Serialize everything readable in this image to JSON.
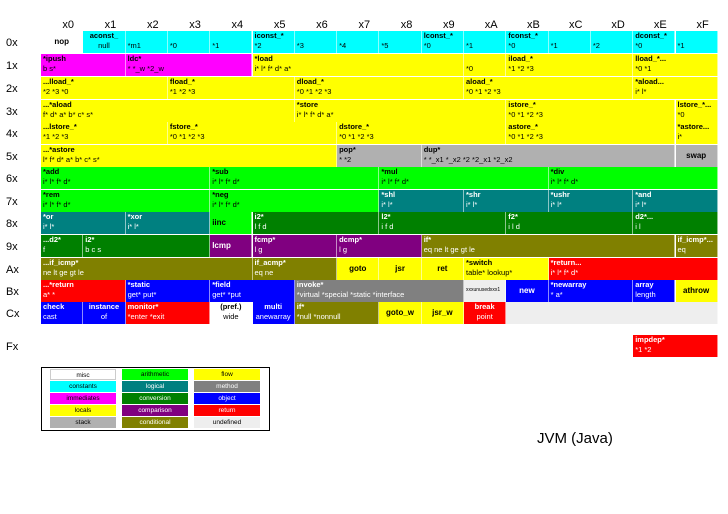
{
  "caption": "JVM (Java)",
  "columns": [
    "x0",
    "x1",
    "x2",
    "x3",
    "x4",
    "x5",
    "x6",
    "x7",
    "x8",
    "x9",
    "xA",
    "xB",
    "xC",
    "xD",
    "xE",
    "xF"
  ],
  "rows": [
    "0x",
    "1x",
    "2x",
    "3x",
    "4x",
    "5x",
    "6x",
    "7x",
    "8x",
    "9x",
    "Ax",
    "Bx",
    "Cx",
    "Fx"
  ],
  "colors": {
    "misc": "#ffffff",
    "constants": "#00ffff",
    "immediates": "#ff00ff",
    "locals": "#ffff00",
    "stack": "#b0b0b0",
    "arithmetic": "#00ff00",
    "logical": "#008080",
    "conversion": "#008000",
    "comparison": "#800080",
    "conditional": "#808000",
    "flow": "#ffff00",
    "method": "#808080",
    "object": "#0000ff",
    "return": "#ff0000",
    "undefined": "#eeeeee"
  },
  "cells": [
    {
      "r": 0,
      "c": 0,
      "w": 1,
      "cat": "misc",
      "t": "nop",
      "b": "",
      "center": true,
      "big": true
    },
    {
      "r": 0,
      "c": 1,
      "w": 1,
      "cat": "constants",
      "t": "aconst_",
      "b": "null",
      "center": true
    },
    {
      "r": 0,
      "c": 2,
      "w": 1,
      "cat": "constants",
      "t": "",
      "b": "*m1"
    },
    {
      "r": 0,
      "c": 3,
      "w": 1,
      "cat": "constants",
      "t": "",
      "b": "*0"
    },
    {
      "r": 0,
      "c": 4,
      "w": 1,
      "cat": "constants",
      "t": "",
      "b": "*1"
    },
    {
      "r": 0,
      "c": 5,
      "w": 1,
      "cat": "constants",
      "t": "iconst_*",
      "b": "*2"
    },
    {
      "r": 0,
      "c": 6,
      "w": 1,
      "cat": "constants",
      "t": "",
      "b": "*3"
    },
    {
      "r": 0,
      "c": 7,
      "w": 1,
      "cat": "constants",
      "t": "",
      "b": "*4"
    },
    {
      "r": 0,
      "c": 8,
      "w": 1,
      "cat": "constants",
      "t": "",
      "b": "*5"
    },
    {
      "r": 0,
      "c": 9,
      "w": 1,
      "cat": "constants",
      "t": "lconst_*",
      "b": "*0"
    },
    {
      "r": 0,
      "c": 10,
      "w": 1,
      "cat": "constants",
      "t": "",
      "b": "*1"
    },
    {
      "r": 0,
      "c": 11,
      "w": 1,
      "cat": "constants",
      "t": "fconst_*",
      "b": "*0"
    },
    {
      "r": 0,
      "c": 12,
      "w": 1,
      "cat": "constants",
      "t": "",
      "b": "*1"
    },
    {
      "r": 0,
      "c": 13,
      "w": 1,
      "cat": "constants",
      "t": "",
      "b": "*2"
    },
    {
      "r": 0,
      "c": 14,
      "w": 1,
      "cat": "constants",
      "t": "dconst_*",
      "b": "*0"
    },
    {
      "r": 0,
      "c": 15,
      "w": 1,
      "cat": "constants",
      "t": "",
      "b": "*1"
    },
    {
      "r": 1,
      "c": 0,
      "w": 2,
      "cat": "immediates",
      "t": "*ipush",
      "b": "b       s*"
    },
    {
      "r": 1,
      "c": 2,
      "w": 3,
      "cat": "immediates",
      "t": "ldc*",
      "b": "*   *_w   *2_w"
    },
    {
      "r": 1,
      "c": 5,
      "w": 5,
      "cat": "locals",
      "t": "*load",
      "b": "i*        l*        f*        d*        a*"
    },
    {
      "r": 1,
      "c": 10,
      "w": 1,
      "cat": "locals",
      "t": "",
      "b": "*0"
    },
    {
      "r": 1,
      "c": 11,
      "w": 3,
      "cat": "locals",
      "t": "iload_*",
      "b": "*1    *2    *3"
    },
    {
      "r": 1,
      "c": 14,
      "w": 2,
      "cat": "locals",
      "t": "lload_*...",
      "b": "*0    *1"
    },
    {
      "r": 2,
      "c": 0,
      "w": 3,
      "cat": "locals",
      "t": "...lload_*",
      "b": "*2     *3     *0"
    },
    {
      "r": 2,
      "c": 3,
      "w": 3,
      "cat": "locals",
      "t": "fload_*",
      "b": "*1     *2     *3"
    },
    {
      "r": 2,
      "c": 6,
      "w": 4,
      "cat": "locals",
      "t": "dload_*",
      "b": "*0     *1     *2     *3"
    },
    {
      "r": 2,
      "c": 10,
      "w": 4,
      "cat": "locals",
      "t": "aload_*",
      "b": "*0     *1     *2     *3"
    },
    {
      "r": 2,
      "c": 14,
      "w": 2,
      "cat": "locals",
      "t": "*aload...",
      "b": "i*     l*"
    },
    {
      "r": 3,
      "c": 0,
      "w": 6,
      "cat": "locals",
      "t": "...*aload",
      "b": "f*      d*      a*      b*      c*      s*"
    },
    {
      "r": 3,
      "c": 6,
      "w": 5,
      "cat": "locals",
      "t": "*store",
      "b": "i*      l*      f*      d*      a*"
    },
    {
      "r": 3,
      "c": 11,
      "w": 4,
      "cat": "locals",
      "t": "istore_*",
      "b": "*0     *1     *2     *3"
    },
    {
      "r": 3,
      "c": 15,
      "w": 1,
      "cat": "locals",
      "t": "lstore_*...",
      "b": "*0"
    },
    {
      "r": 4,
      "c": 0,
      "w": 3,
      "cat": "locals",
      "t": "...lstore_*",
      "b": "*1     *2     *3"
    },
    {
      "r": 4,
      "c": 3,
      "w": 4,
      "cat": "locals",
      "t": "fstore_*",
      "b": "*0     *1     *2     *3"
    },
    {
      "r": 4,
      "c": 7,
      "w": 4,
      "cat": "locals",
      "t": "dstore_*",
      "b": "*0     *1     *2     *3"
    },
    {
      "r": 4,
      "c": 11,
      "w": 4,
      "cat": "locals",
      "t": "astore_*",
      "b": "*0     *1     *2     *3"
    },
    {
      "r": 4,
      "c": 15,
      "w": 1,
      "cat": "locals",
      "t": "*astore...",
      "b": "i*"
    },
    {
      "r": 5,
      "c": 0,
      "w": 7,
      "cat": "locals",
      "t": "...*astore",
      "b": "l*      f*      d*      a*      b*      c*      s*"
    },
    {
      "r": 5,
      "c": 7,
      "w": 2,
      "cat": "stack",
      "t": "pop*",
      "b": "*       *2"
    },
    {
      "r": 5,
      "c": 9,
      "w": 6,
      "cat": "stack",
      "t": "dup*",
      "b": "*     *_x1   *_x2   *2   *2_x1  *2_x2"
    },
    {
      "r": 5,
      "c": 15,
      "w": 1,
      "cat": "stack",
      "t": "swap",
      "b": "",
      "big": true,
      "center": true
    },
    {
      "r": 6,
      "c": 0,
      "w": 4,
      "cat": "arithmetic",
      "t": "*add",
      "b": "i*     l*     f*     d*"
    },
    {
      "r": 6,
      "c": 4,
      "w": 4,
      "cat": "arithmetic",
      "t": "*sub",
      "b": "i*     l*     f*     d*"
    },
    {
      "r": 6,
      "c": 8,
      "w": 4,
      "cat": "arithmetic",
      "t": "*mul",
      "b": "i*     l*     f*     d*"
    },
    {
      "r": 6,
      "c": 12,
      "w": 4,
      "cat": "arithmetic",
      "t": "*div",
      "b": "i*     l*     f*     d*"
    },
    {
      "r": 7,
      "c": 0,
      "w": 4,
      "cat": "arithmetic",
      "t": "*rem",
      "b": "i*     l*     f*     d*"
    },
    {
      "r": 7,
      "c": 4,
      "w": 4,
      "cat": "arithmetic",
      "t": "*neg",
      "b": "i*     l*     f*     d*"
    },
    {
      "r": 7,
      "c": 8,
      "w": 2,
      "cat": "logical",
      "t": "*shl",
      "b": "i*     l*"
    },
    {
      "r": 7,
      "c": 10,
      "w": 2,
      "cat": "logical",
      "t": "*shr",
      "b": "i*     l*"
    },
    {
      "r": 7,
      "c": 12,
      "w": 2,
      "cat": "logical",
      "t": "*ushr",
      "b": "i*     l*"
    },
    {
      "r": 7,
      "c": 14,
      "w": 2,
      "cat": "logical",
      "t": "*and",
      "b": "i*     l*"
    },
    {
      "r": 8,
      "c": 0,
      "w": 2,
      "cat": "logical",
      "t": "*or",
      "b": "i*     l*"
    },
    {
      "r": 8,
      "c": 2,
      "w": 2,
      "cat": "logical",
      "t": "*xor",
      "b": "i*     l*"
    },
    {
      "r": 8,
      "c": 4,
      "w": 1,
      "cat": "arithmetic",
      "t": "iinc",
      "b": "",
      "big": true
    },
    {
      "r": 8,
      "c": 5,
      "w": 3,
      "cat": "conversion",
      "t": "i2*",
      "b": "l     f     d"
    },
    {
      "r": 8,
      "c": 8,
      "w": 3,
      "cat": "conversion",
      "t": "l2*",
      "b": "i     f     d"
    },
    {
      "r": 8,
      "c": 11,
      "w": 3,
      "cat": "conversion",
      "t": "f2*",
      "b": "i     l     d"
    },
    {
      "r": 8,
      "c": 14,
      "w": 2,
      "cat": "conversion",
      "t": "d2*...",
      "b": "i     l"
    },
    {
      "r": 9,
      "c": 0,
      "w": 1,
      "cat": "conversion",
      "t": "...d2*",
      "b": "f"
    },
    {
      "r": 9,
      "c": 1,
      "w": 3,
      "cat": "conversion",
      "t": "i2*",
      "b": "b     c     s"
    },
    {
      "r": 9,
      "c": 4,
      "w": 1,
      "cat": "comparison",
      "t": "lcmp",
      "b": "",
      "big": true
    },
    {
      "r": 9,
      "c": 5,
      "w": 2,
      "cat": "comparison",
      "t": "fcmp*",
      "b": "l     g"
    },
    {
      "r": 9,
      "c": 7,
      "w": 2,
      "cat": "comparison",
      "t": "dcmp*",
      "b": "l     g"
    },
    {
      "r": 9,
      "c": 9,
      "w": 6,
      "cat": "conditional",
      "t": "if*",
      "b": "eq    ne    lt    ge    gt    le"
    },
    {
      "r": 9,
      "c": 15,
      "w": 1,
      "cat": "conditional",
      "t": "if_icmp*...",
      "b": "eq"
    },
    {
      "r": 10,
      "c": 0,
      "w": 5,
      "cat": "conditional",
      "t": "...if_icmp*",
      "b": "ne     lt     ge     gt     le"
    },
    {
      "r": 10,
      "c": 5,
      "w": 2,
      "cat": "conditional",
      "t": "if_acmp*",
      "b": "eq     ne"
    },
    {
      "r": 10,
      "c": 7,
      "w": 1,
      "cat": "flow",
      "t": "goto",
      "b": "",
      "big": true,
      "center": true
    },
    {
      "r": 10,
      "c": 8,
      "w": 1,
      "cat": "flow",
      "t": "jsr",
      "b": "",
      "big": true,
      "center": true
    },
    {
      "r": 10,
      "c": 9,
      "w": 1,
      "cat": "flow",
      "t": "ret",
      "b": "",
      "big": true,
      "center": true
    },
    {
      "r": 10,
      "c": 10,
      "w": 2,
      "cat": "flow",
      "t": "*switch",
      "b": "table*   lookup*"
    },
    {
      "r": 10,
      "c": 12,
      "w": 4,
      "cat": "return",
      "t": "*return...",
      "b": "i*     l*     f*     d*"
    },
    {
      "r": 11,
      "c": 0,
      "w": 2,
      "cat": "return",
      "t": "...*return",
      "b": "a*     *"
    },
    {
      "r": 11,
      "c": 2,
      "w": 2,
      "cat": "object",
      "t": "*static",
      "b": "get*   put*"
    },
    {
      "r": 11,
      "c": 4,
      "w": 2,
      "cat": "object",
      "t": "*field",
      "b": "get*   *put"
    },
    {
      "r": 11,
      "c": 6,
      "w": 4,
      "cat": "method",
      "t": "invoke*",
      "b": "*virtual  *special  *static  *interface"
    },
    {
      "r": 11,
      "c": 10,
      "w": 1,
      "cat": "undefined",
      "t": "",
      "b": "xxxunusedxxx1"
    },
    {
      "r": 11,
      "c": 11,
      "w": 1,
      "cat": "object",
      "t": "new",
      "b": "",
      "big": true,
      "center": true
    },
    {
      "r": 11,
      "c": 12,
      "w": 2,
      "cat": "object",
      "t": "*newarray",
      "b": "*     a*"
    },
    {
      "r": 11,
      "c": 14,
      "w": 1,
      "cat": "object",
      "t": "array",
      "b": "length"
    },
    {
      "r": 11,
      "c": 15,
      "w": 1,
      "cat": "flow",
      "t": "athrow",
      "b": "",
      "big": true,
      "center": true
    },
    {
      "r": 12,
      "c": 0,
      "w": 1,
      "cat": "object",
      "t": "check",
      "b": "cast"
    },
    {
      "r": 12,
      "c": 1,
      "w": 1,
      "cat": "object",
      "t": "instance",
      "b": "of",
      "center": true
    },
    {
      "r": 12,
      "c": 2,
      "w": 2,
      "cat": "return",
      "t": "monitor*",
      "b": "*enter   *exit"
    },
    {
      "r": 12,
      "c": 4,
      "w": 1,
      "cat": "misc",
      "t": "(pref.)",
      "b": "wide",
      "center": true
    },
    {
      "r": 12,
      "c": 5,
      "w": 1,
      "cat": "object",
      "t": "multi",
      "b": "anewarray",
      "center": true
    },
    {
      "r": 12,
      "c": 6,
      "w": 2,
      "cat": "conditional",
      "t": "if*",
      "b": "*null   *nonnull"
    },
    {
      "r": 12,
      "c": 8,
      "w": 1,
      "cat": "flow",
      "t": "goto_w",
      "b": "",
      "big": true,
      "center": true
    },
    {
      "r": 12,
      "c": 9,
      "w": 1,
      "cat": "flow",
      "t": "jsr_w",
      "b": "",
      "big": true,
      "center": true
    },
    {
      "r": 12,
      "c": 10,
      "w": 1,
      "cat": "return",
      "t": "break",
      "b": "point",
      "center": true
    },
    {
      "r": 12,
      "c": 11,
      "w": 5,
      "cat": "undefined",
      "t": "",
      "b": ""
    },
    {
      "r": 13,
      "c": 14,
      "w": 2,
      "cat": "return",
      "t": "impdep*",
      "b": "*1     *2"
    }
  ],
  "legend": [
    {
      "label": "misc",
      "cat": "misc"
    },
    {
      "label": "arithmetic",
      "cat": "arithmetic"
    },
    {
      "label": "flow",
      "cat": "flow"
    },
    {
      "label": "constants",
      "cat": "constants"
    },
    {
      "label": "logical",
      "cat": "logical"
    },
    {
      "label": "method",
      "cat": "method"
    },
    {
      "label": "immediates",
      "cat": "immediates"
    },
    {
      "label": "conversion",
      "cat": "conversion"
    },
    {
      "label": "object",
      "cat": "object"
    },
    {
      "label": "locals",
      "cat": "locals"
    },
    {
      "label": "comparison",
      "cat": "comparison"
    },
    {
      "label": "return",
      "cat": "return"
    },
    {
      "label": "stack",
      "cat": "stack"
    },
    {
      "label": "conditional",
      "cat": "conditional"
    },
    {
      "label": "undefined",
      "cat": "undefined"
    }
  ]
}
